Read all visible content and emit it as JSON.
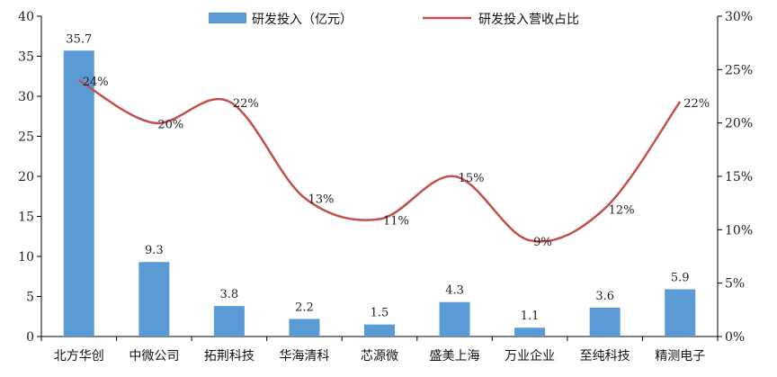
{
  "chart_data": {
    "type": "bar+line",
    "categories": [
      "北方华创",
      "中微公司",
      "拓荆科技",
      "华海清科",
      "芯源微",
      "盛美上海",
      "万业企业",
      "至纯科技",
      "精测电子"
    ],
    "series": [
      {
        "name": "研发投入（亿元）",
        "type": "bar",
        "axis": "left",
        "color": "#5b9bd5",
        "values": [
          35.7,
          9.3,
          3.8,
          2.2,
          1.5,
          4.3,
          1.1,
          3.6,
          5.9
        ],
        "labels": [
          "35.7",
          "9.3",
          "3.8",
          "2.2",
          "1.5",
          "4.3",
          "1.1",
          "3.6",
          "5.9"
        ]
      },
      {
        "name": "研发投入营收占比",
        "type": "line",
        "axis": "right",
        "color": "#c0504d",
        "values": [
          24,
          20,
          22,
          13,
          11,
          15,
          9,
          12,
          22
        ],
        "labels": [
          "24%",
          "20%",
          "22%",
          "13%",
          "11%",
          "15%",
          "9%",
          "12%",
          "22%"
        ]
      }
    ],
    "y_left": {
      "min": 0,
      "max": 40,
      "ticks": [
        0,
        5,
        10,
        15,
        20,
        25,
        30,
        35,
        40
      ],
      "tick_labels": [
        "0",
        "5",
        "10",
        "15",
        "20",
        "25",
        "30",
        "35",
        "40"
      ]
    },
    "y_right": {
      "min": 0,
      "max": 30,
      "ticks": [
        0,
        5,
        10,
        15,
        20,
        25,
        30
      ],
      "tick_labels": [
        "0%",
        "5%",
        "10%",
        "15%",
        "20%",
        "25%",
        "30%"
      ]
    },
    "grid": false,
    "legend_position": "top"
  }
}
